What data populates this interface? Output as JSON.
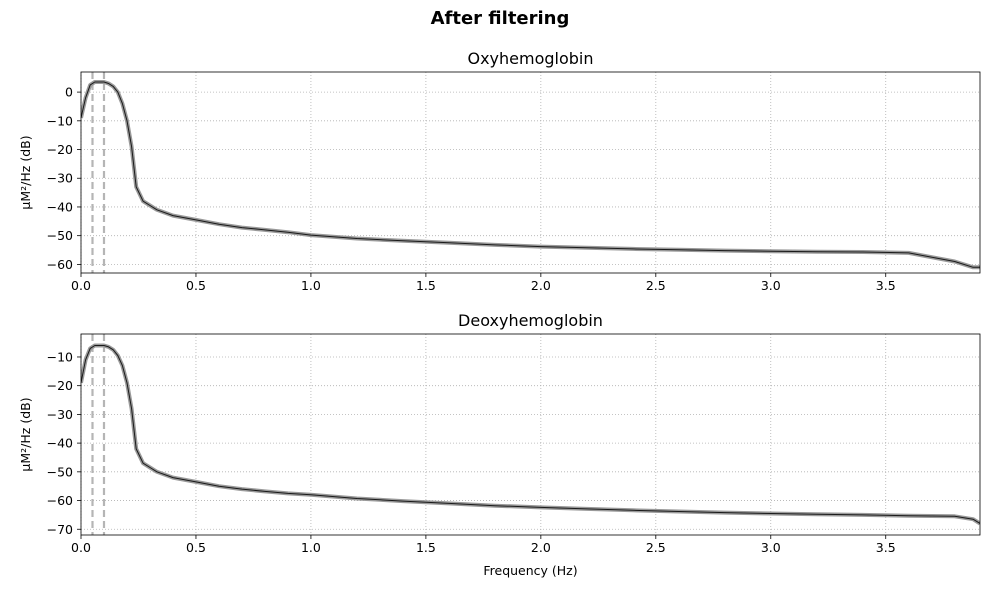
{
  "figure": {
    "title": "After filtering"
  },
  "chart_data": [
    {
      "type": "line",
      "title": "Oxyhemoglobin",
      "xlabel": "",
      "ylabel": "μM²/Hz (dB)",
      "xlim": [
        0,
        3.91
      ],
      "ylim": [
        -63,
        7
      ],
      "xticks": [
        0.0,
        0.5,
        1.0,
        1.5,
        2.0,
        2.5,
        3.0,
        3.5
      ],
      "xtick_labels": [
        "0.0",
        "0.5",
        "1.0",
        "1.5",
        "2.0",
        "2.5",
        "3.0",
        "3.5"
      ],
      "yticks": [
        0,
        -10,
        -20,
        -30,
        -40,
        -50,
        -60
      ],
      "ytick_labels": [
        "0",
        "−10",
        "−20",
        "−30",
        "−40",
        "−50",
        "−60"
      ],
      "grid": true,
      "band_lines": [
        0.05,
        0.1
      ],
      "series": [
        {
          "x": [
            0.0,
            0.02,
            0.04,
            0.06,
            0.08,
            0.1,
            0.12,
            0.14,
            0.16,
            0.18,
            0.2,
            0.22,
            0.24,
            0.27,
            0.3,
            0.33,
            0.4,
            0.5,
            0.6,
            0.7,
            0.8,
            0.9,
            1.0,
            1.2,
            1.4,
            1.6,
            1.8,
            2.0,
            2.2,
            2.4,
            2.6,
            2.8,
            3.0,
            3.2,
            3.4,
            3.6,
            3.8,
            3.88,
            3.91
          ],
          "y": [
            -9,
            -2,
            2.5,
            3.5,
            3.5,
            3.5,
            3,
            2,
            0,
            -4,
            -10,
            -19,
            -33,
            -38,
            -39.5,
            -41,
            -43,
            -44.5,
            -46,
            -47.2,
            -48,
            -48.8,
            -49.8,
            -51,
            -51.8,
            -52.5,
            -53.2,
            -53.8,
            -54.2,
            -54.6,
            -54.9,
            -55.2,
            -55.4,
            -55.6,
            -55.7,
            -56,
            -59,
            -61,
            -61
          ]
        }
      ]
    },
    {
      "type": "line",
      "title": "Deoxyhemoglobin",
      "xlabel": "Frequency (Hz)",
      "ylabel": "μM²/Hz (dB)",
      "xlim": [
        0,
        3.91
      ],
      "ylim": [
        -72,
        -2
      ],
      "xticks": [
        0.0,
        0.5,
        1.0,
        1.5,
        2.0,
        2.5,
        3.0,
        3.5
      ],
      "xtick_labels": [
        "0.0",
        "0.5",
        "1.0",
        "1.5",
        "2.0",
        "2.5",
        "3.0",
        "3.5"
      ],
      "yticks": [
        -10,
        -20,
        -30,
        -40,
        -50,
        -60,
        -70
      ],
      "ytick_labels": [
        "−10",
        "−20",
        "−30",
        "−40",
        "−50",
        "−60",
        "−70"
      ],
      "grid": true,
      "band_lines": [
        0.05,
        0.1
      ],
      "series": [
        {
          "x": [
            0.0,
            0.02,
            0.04,
            0.06,
            0.08,
            0.1,
            0.12,
            0.14,
            0.16,
            0.18,
            0.2,
            0.22,
            0.24,
            0.27,
            0.3,
            0.33,
            0.4,
            0.5,
            0.6,
            0.7,
            0.8,
            0.9,
            1.0,
            1.2,
            1.4,
            1.6,
            1.8,
            2.0,
            2.2,
            2.4,
            2.6,
            2.8,
            3.0,
            3.2,
            3.4,
            3.6,
            3.8,
            3.88,
            3.91
          ],
          "y": [
            -19,
            -11,
            -7,
            -6,
            -6,
            -6,
            -6.5,
            -7.5,
            -9.5,
            -13,
            -19,
            -28,
            -42,
            -47,
            -48.5,
            -50,
            -52,
            -53.5,
            -55,
            -56,
            -56.8,
            -57.5,
            -58,
            -59.3,
            -60.2,
            -61,
            -61.8,
            -62.4,
            -62.9,
            -63.4,
            -63.8,
            -64.2,
            -64.5,
            -64.8,
            -65,
            -65.3,
            -65.5,
            -66.5,
            -68
          ]
        }
      ]
    }
  ]
}
